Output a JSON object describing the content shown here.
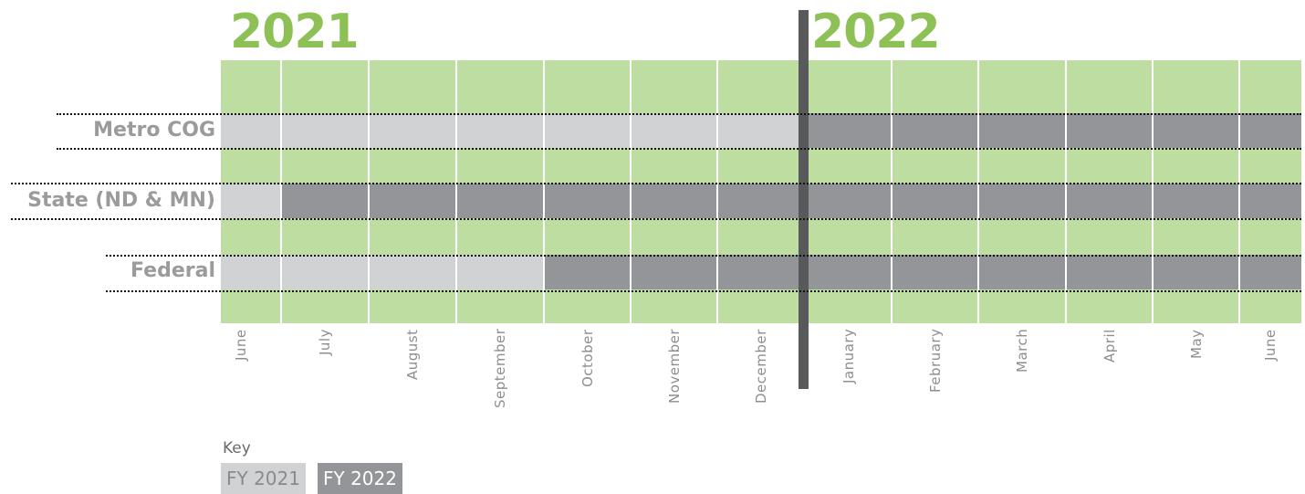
{
  "years": [
    "2021",
    "2022"
  ],
  "months": [
    "June",
    "July",
    "August",
    "September",
    "October",
    "November",
    "December",
    "January",
    "February",
    "March",
    "April",
    "May",
    "June"
  ],
  "rows": [
    {
      "label": "Metro COG",
      "fy2021_months": 7
    },
    {
      "label": "State (ND & MN)",
      "fy2021_months": 1
    },
    {
      "label": "Federal",
      "fy2021_months": 4
    }
  ],
  "key": {
    "title": "Key",
    "fy2021": "FY 2021",
    "fy2022": "FY 2022"
  },
  "colors": {
    "green": "#bedda0",
    "year_text": "#8dc155",
    "fy2021": "#d1d2d4",
    "fy2022": "#939598",
    "divider": "#58595b",
    "dotted": "#111111"
  }
}
